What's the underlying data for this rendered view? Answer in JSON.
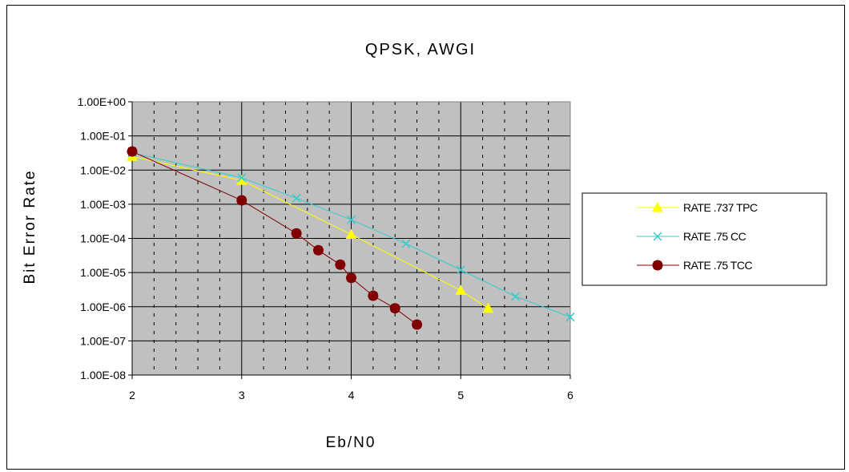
{
  "chart_data": {
    "type": "line",
    "title": "QPSK,  AWGN",
    "title_visible": "QPSK,  AWGI",
    "xlabel": "Eb/N0",
    "ylabel": "Bit  Error  Rate",
    "xlim": [
      2,
      6
    ],
    "ylim": [
      1e-08,
      1
    ],
    "yscale": "log",
    "x_ticks": [
      "2",
      "3",
      "4",
      "5",
      "6"
    ],
    "y_ticks": [
      "1.00E+00",
      "1.00E-01",
      "1.00E-02",
      "1.00E-03",
      "1.00E-04",
      "1.00E-05",
      "1.00E-06",
      "1.00E-07",
      "1.00E-08"
    ],
    "grid": true,
    "plot_background": "#c0c0c0",
    "legend_position": "right",
    "series": [
      {
        "name": "RATE .737 TPC",
        "color": "#ffff00",
        "marker": "triangle",
        "x": [
          2,
          3,
          4,
          5,
          5.25
        ],
        "y": [
          0.025,
          0.005,
          0.00013,
          3e-06,
          9e-07
        ]
      },
      {
        "name": "RATE .75 CC",
        "color": "#33cccc",
        "marker": "x",
        "x": [
          2,
          3,
          3.5,
          4,
          4.5,
          5,
          5.5,
          6
        ],
        "y": [
          0.032,
          0.006,
          0.0015,
          0.00035,
          7e-05,
          1.2e-05,
          2e-06,
          5e-07
        ]
      },
      {
        "name": "RATE .75 TCC",
        "color": "#800000",
        "marker": "square",
        "x": [
          2,
          3,
          3.5,
          3.7,
          3.9,
          4,
          4.2,
          4.4,
          4.6
        ],
        "y": [
          0.035,
          0.0013,
          0.00014,
          4.5e-05,
          1.7e-05,
          7e-06,
          2.1e-06,
          9e-07,
          3e-07
        ]
      }
    ]
  }
}
